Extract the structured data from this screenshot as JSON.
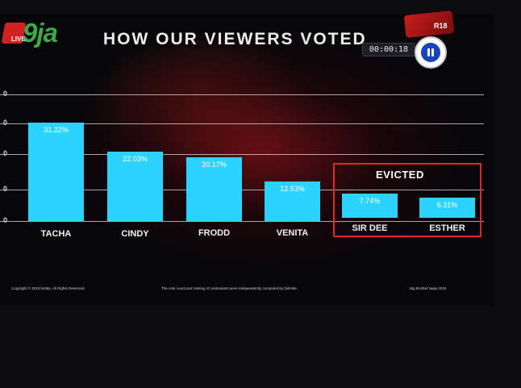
{
  "broadcast": {
    "logo_text": "9ja",
    "logo_sub": "LIVE",
    "title": "HOW OUR VIEWERS VOTED",
    "timer": "00:00:18",
    "badge_text": "R18"
  },
  "footer": {
    "copyright": "Copyright © 2019 bet9ja. All Rights Reserved.",
    "disclaimer": "The vote count and ranking of contestants were independently computed by Deloitte.",
    "show": "Big Brother Naija 2019"
  },
  "chart_data": {
    "type": "bar",
    "title": "HOW OUR VIEWERS VOTED",
    "xlabel": "",
    "ylabel": "",
    "categories": [
      "TACHA",
      "CINDY",
      "FRODD",
      "VENITA",
      "SIR DEE",
      "ESTHER"
    ],
    "values": [
      31.22,
      22.03,
      20.17,
      12.53,
      7.74,
      6.31
    ],
    "data_labels": [
      "31.22%",
      "22.03%",
      "20.17%",
      "12.53%",
      "7.74%",
      "6.31%"
    ],
    "ytick_labels": [
      "0",
      "0",
      "0",
      "0",
      "0"
    ],
    "grid": true,
    "annotation": {
      "text": "EVICTED",
      "covers": [
        "SIR DEE",
        "ESTHER"
      ]
    },
    "colors": {
      "bar": "#2bd4ff",
      "evicted_box": "#e02a2a",
      "background": "#07070a"
    }
  }
}
